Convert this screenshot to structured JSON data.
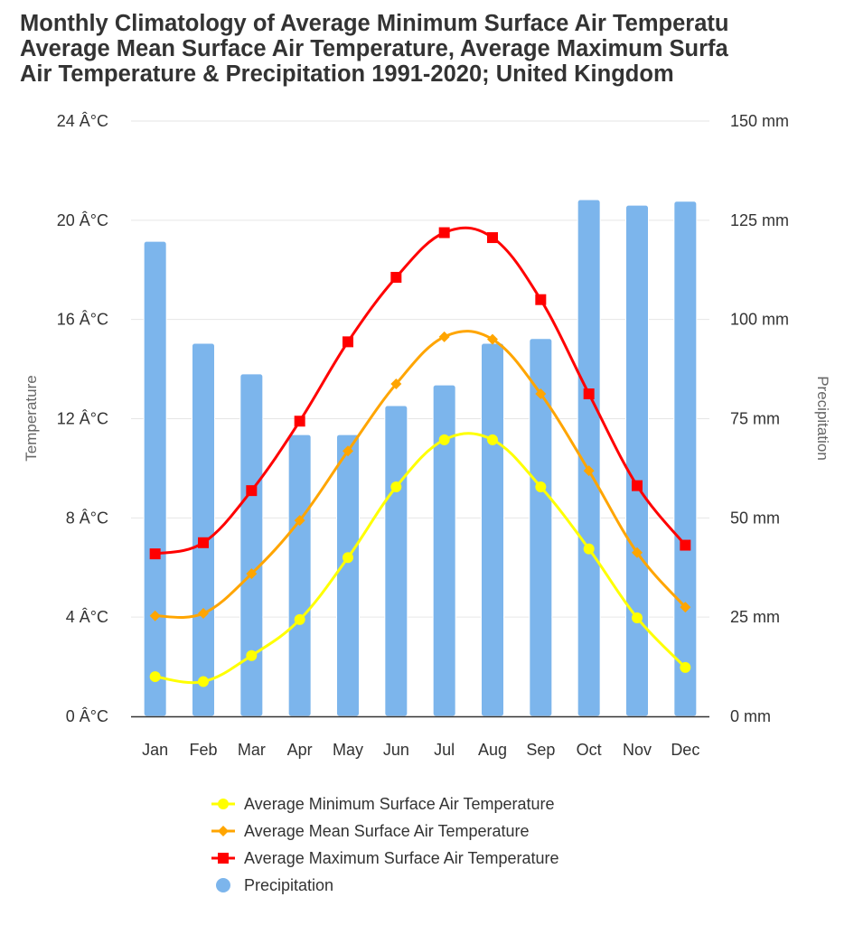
{
  "chart_data": {
    "type": "bar+line",
    "title_lines": [
      "Monthly Climatology of Average Minimum Surface Air Temperatu",
      "Average Mean Surface Air Temperature, Average Maximum Surfa",
      "Air Temperature & Precipitation 1991-2020; United Kingdom"
    ],
    "categories": [
      "Jan",
      "Feb",
      "Mar",
      "Apr",
      "May",
      "Jun",
      "Jul",
      "Aug",
      "Sep",
      "Oct",
      "Nov",
      "Dec"
    ],
    "y_left": {
      "label": "Temperature",
      "range": [
        0,
        24
      ],
      "ticks": [
        0,
        4,
        8,
        12,
        16,
        20,
        24
      ],
      "tick_labels": [
        "0 Â°C",
        "4 Â°C",
        "8 Â°C",
        "12 Â°C",
        "16 Â°C",
        "20 Â°C",
        "24 Â°C"
      ]
    },
    "y_right": {
      "label": "Precipitation",
      "range": [
        0,
        150
      ],
      "ticks": [
        0,
        25,
        50,
        75,
        100,
        125,
        150
      ],
      "tick_labels": [
        "0 mm",
        "25 mm",
        "50 mm",
        "75 mm",
        "100 mm",
        "125 mm",
        "150 mm"
      ]
    },
    "grid": true,
    "legend_position": "bottom",
    "series": [
      {
        "name": "Average Minimum Surface Air Temperature",
        "type": "line",
        "axis": "left",
        "color": "#ffff00",
        "marker": "circle",
        "values": [
          1.6,
          1.4,
          2.45,
          3.9,
          6.4,
          9.25,
          11.15,
          11.15,
          9.25,
          6.75,
          3.97,
          1.97
        ]
      },
      {
        "name": "Average Mean Surface Air Temperature",
        "type": "line",
        "axis": "left",
        "color": "#ffa500",
        "marker": "diamond",
        "values": [
          4.05,
          4.15,
          5.75,
          7.9,
          10.7,
          13.4,
          15.3,
          15.2,
          13.0,
          9.9,
          6.6,
          4.4
        ]
      },
      {
        "name": "Average Maximum Surface Air Temperature",
        "type": "line",
        "axis": "left",
        "color": "#ff0000",
        "marker": "square",
        "values": [
          6.55,
          7.0,
          9.1,
          11.9,
          15.1,
          17.7,
          19.5,
          19.3,
          16.8,
          13.0,
          9.3,
          6.9
        ]
      },
      {
        "name": "Precipitation",
        "type": "bar",
        "axis": "right",
        "color": "#7cb5ec",
        "marker": "circle",
        "values": [
          119.7,
          94.0,
          86.3,
          71.0,
          71.0,
          78.3,
          83.5,
          94.0,
          95.2,
          130.2,
          128.8,
          129.8
        ]
      }
    ]
  }
}
